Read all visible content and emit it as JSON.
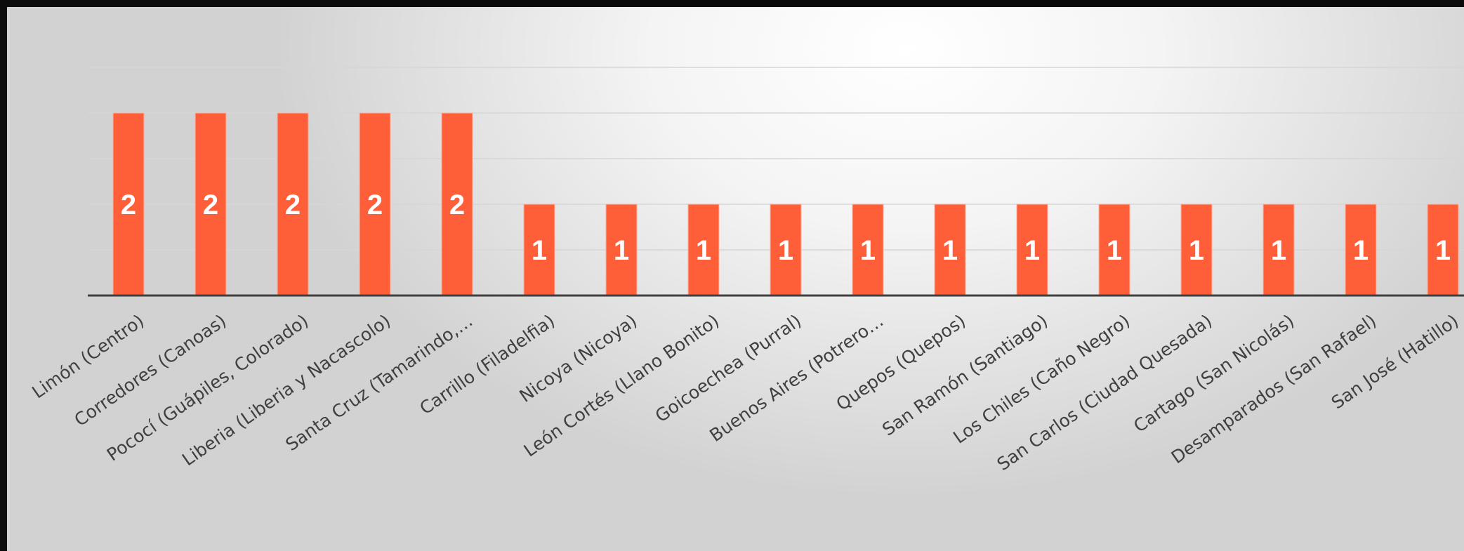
{
  "chart_data": {
    "type": "bar",
    "title": "",
    "xlabel": "",
    "ylabel": "",
    "grid": true,
    "ylim": [
      0,
      2.5
    ],
    "gridlines": [
      0.5,
      1,
      1.5,
      2,
      2.5
    ],
    "colors": {
      "bar": "#ff5f38",
      "bar_edge": "#ffb3a0",
      "label": "#ffffff",
      "grid": "#d6d6d6",
      "axis": "#404040",
      "tick_label": "#404040"
    },
    "categories": [
      "Limón (Centro)",
      "Corredores (Canoas)",
      "Pococí (Guápiles, Colorado)",
      "Liberia (Liberia y Nacascolo)",
      "Santa Cruz (Tamarindo,…",
      "Carrillo (Filadelfia)",
      "Nicoya (Nicoya)",
      "León Cortés (Llano Bonito)",
      "Goicoechea (Purral)",
      "Buenos Aires (Potrero…",
      "Quepos (Quepos)",
      "San Ramón (Santiago)",
      "Los Chiles (Caño Negro)",
      "San Carlos (Ciudad Quesada)",
      "Cartago (San Nicolás)",
      "Desamparados (San Rafael)",
      "San José (Hatillo)"
    ],
    "values": [
      2,
      2,
      2,
      2,
      2,
      1,
      1,
      1,
      1,
      1,
      1,
      1,
      1,
      1,
      1,
      1,
      1
    ],
    "data_labels": [
      "2",
      "2",
      "2",
      "2",
      "2",
      "1",
      "1",
      "1",
      "1",
      "1",
      "1",
      "1",
      "1",
      "1",
      "1",
      "1",
      "1"
    ]
  }
}
